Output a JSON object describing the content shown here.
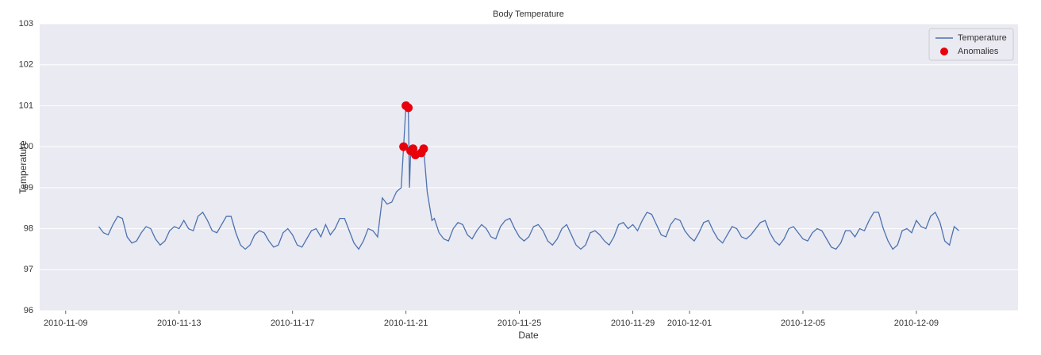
{
  "chart_data": {
    "type": "line",
    "title": "Body Temperature",
    "x_label": "Date",
    "y_label": "Temperature",
    "xlim": [
      "2010-11-08T02:00",
      "2010-12-12T14:00"
    ],
    "xticks": [
      "2010-11-09",
      "2010-11-13",
      "2010-11-17",
      "2010-11-21",
      "2010-11-25",
      "2010-11-29",
      "2010-12-01",
      "2010-12-05",
      "2010-12-09"
    ],
    "ylim": [
      96,
      103
    ],
    "yticks": [
      96,
      97,
      98,
      99,
      100,
      101,
      102,
      103
    ],
    "grid": true,
    "legend": "upper right",
    "series": [
      {
        "name": "Temperature",
        "type": "line",
        "color": "#4c72b0",
        "x": [
          "2010-11-10T04:00",
          "2010-11-10T08:00",
          "2010-11-10T12:00",
          "2010-11-10T16:00",
          "2010-11-10T20:00",
          "2010-11-11T00:00",
          "2010-11-11T04:00",
          "2010-11-11T08:00",
          "2010-11-11T12:00",
          "2010-11-11T16:00",
          "2010-11-11T20:00",
          "2010-11-12T00:00",
          "2010-11-12T04:00",
          "2010-11-12T08:00",
          "2010-11-12T12:00",
          "2010-11-12T16:00",
          "2010-11-12T20:00",
          "2010-11-13T00:00",
          "2010-11-13T04:00",
          "2010-11-13T08:00",
          "2010-11-13T12:00",
          "2010-11-13T16:00",
          "2010-11-13T20:00",
          "2010-11-14T00:00",
          "2010-11-14T04:00",
          "2010-11-14T08:00",
          "2010-11-14T12:00",
          "2010-11-14T16:00",
          "2010-11-14T20:00",
          "2010-11-15T00:00",
          "2010-11-15T04:00",
          "2010-11-15T08:00",
          "2010-11-15T12:00",
          "2010-11-15T16:00",
          "2010-11-15T20:00",
          "2010-11-16T00:00",
          "2010-11-16T04:00",
          "2010-11-16T08:00",
          "2010-11-16T12:00",
          "2010-11-16T16:00",
          "2010-11-16T20:00",
          "2010-11-17T00:00",
          "2010-11-17T04:00",
          "2010-11-17T08:00",
          "2010-11-17T12:00",
          "2010-11-17T16:00",
          "2010-11-17T20:00",
          "2010-11-18T00:00",
          "2010-11-18T04:00",
          "2010-11-18T08:00",
          "2010-11-18T12:00",
          "2010-11-18T16:00",
          "2010-11-18T20:00",
          "2010-11-19T00:00",
          "2010-11-19T04:00",
          "2010-11-19T08:00",
          "2010-11-19T12:00",
          "2010-11-19T16:00",
          "2010-11-19T20:00",
          "2010-11-20T00:00",
          "2010-11-20T04:00",
          "2010-11-20T08:00",
          "2010-11-20T12:00",
          "2010-11-20T16:00",
          "2010-11-20T20:00",
          "2010-11-20T22:00",
          "2010-11-21T00:00",
          "2010-11-21T02:00",
          "2010-11-21T03:00",
          "2010-11-21T04:00",
          "2010-11-21T06:00",
          "2010-11-21T08:00",
          "2010-11-21T12:00",
          "2010-11-21T13:00",
          "2010-11-21T15:00",
          "2010-11-21T18:00",
          "2010-11-21T22:00",
          "2010-11-22T00:00",
          "2010-11-22T04:00",
          "2010-11-22T08:00",
          "2010-11-22T12:00",
          "2010-11-22T16:00",
          "2010-11-22T20:00",
          "2010-11-23T00:00",
          "2010-11-23T04:00",
          "2010-11-23T08:00",
          "2010-11-23T12:00",
          "2010-11-23T16:00",
          "2010-11-23T20:00",
          "2010-11-24T00:00",
          "2010-11-24T04:00",
          "2010-11-24T08:00",
          "2010-11-24T12:00",
          "2010-11-24T16:00",
          "2010-11-24T20:00",
          "2010-11-25T00:00",
          "2010-11-25T04:00",
          "2010-11-25T08:00",
          "2010-11-25T12:00",
          "2010-11-25T16:00",
          "2010-11-25T20:00",
          "2010-11-26T00:00",
          "2010-11-26T04:00",
          "2010-11-26T08:00",
          "2010-11-26T12:00",
          "2010-11-26T16:00",
          "2010-11-26T20:00",
          "2010-11-27T00:00",
          "2010-11-27T04:00",
          "2010-11-27T08:00",
          "2010-11-27T12:00",
          "2010-11-27T16:00",
          "2010-11-27T20:00",
          "2010-11-28T00:00",
          "2010-11-28T04:00",
          "2010-11-28T08:00",
          "2010-11-28T12:00",
          "2010-11-28T16:00",
          "2010-11-28T20:00",
          "2010-11-29T00:00",
          "2010-11-29T04:00",
          "2010-11-29T08:00",
          "2010-11-29T12:00",
          "2010-11-29T16:00",
          "2010-11-29T20:00",
          "2010-11-30T00:00",
          "2010-11-30T04:00",
          "2010-11-30T08:00",
          "2010-11-30T12:00",
          "2010-11-30T16:00",
          "2010-11-30T20:00",
          "2010-12-01T00:00",
          "2010-12-01T04:00",
          "2010-12-01T08:00",
          "2010-12-01T12:00",
          "2010-12-01T16:00",
          "2010-12-01T20:00",
          "2010-12-02T00:00",
          "2010-12-02T04:00",
          "2010-12-02T08:00",
          "2010-12-02T12:00",
          "2010-12-02T16:00",
          "2010-12-02T20:00",
          "2010-12-03T00:00",
          "2010-12-03T04:00",
          "2010-12-03T08:00",
          "2010-12-03T12:00",
          "2010-12-03T16:00",
          "2010-12-03T20:00",
          "2010-12-04T00:00",
          "2010-12-04T04:00",
          "2010-12-04T08:00",
          "2010-12-04T12:00",
          "2010-12-04T16:00",
          "2010-12-04T20:00",
          "2010-12-05T00:00",
          "2010-12-05T04:00",
          "2010-12-05T08:00",
          "2010-12-05T12:00",
          "2010-12-05T16:00",
          "2010-12-05T20:00",
          "2010-12-06T00:00",
          "2010-12-06T04:00",
          "2010-12-06T08:00",
          "2010-12-06T12:00",
          "2010-12-06T16:00",
          "2010-12-06T20:00",
          "2010-12-07T00:00",
          "2010-12-07T04:00",
          "2010-12-07T08:00",
          "2010-12-07T12:00",
          "2010-12-07T16:00",
          "2010-12-07T20:00",
          "2010-12-08T00:00",
          "2010-12-08T04:00",
          "2010-12-08T08:00",
          "2010-12-08T12:00",
          "2010-12-08T16:00",
          "2010-12-08T20:00",
          "2010-12-09T00:00",
          "2010-12-09T04:00",
          "2010-12-09T08:00",
          "2010-12-09T12:00",
          "2010-12-09T16:00",
          "2010-12-09T20:00",
          "2010-12-10T00:00",
          "2010-12-10T04:00",
          "2010-12-10T08:00",
          "2010-12-10T12:00"
        ],
        "values": [
          98.05,
          97.9,
          97.85,
          98.1,
          98.3,
          98.25,
          97.8,
          97.65,
          97.7,
          97.9,
          98.05,
          98.0,
          97.75,
          97.6,
          97.7,
          97.95,
          98.05,
          98.0,
          98.2,
          98.0,
          97.95,
          98.3,
          98.4,
          98.2,
          97.95,
          97.9,
          98.1,
          98.3,
          98.3,
          97.9,
          97.6,
          97.5,
          97.6,
          97.85,
          97.95,
          97.9,
          97.7,
          97.55,
          97.6,
          97.9,
          98.0,
          97.85,
          97.6,
          97.55,
          97.75,
          97.95,
          98.0,
          97.8,
          98.1,
          97.85,
          98.0,
          98.25,
          98.25,
          97.95,
          97.65,
          97.5,
          97.7,
          98.0,
          97.95,
          97.8,
          98.75,
          98.6,
          98.65,
          98.9,
          99.0,
          100.0,
          101.0,
          100.95,
          99.0,
          99.9,
          99.95,
          99.8,
          99.8,
          99.85,
          99.95,
          98.9,
          98.2,
          98.25,
          97.9,
          97.75,
          97.7,
          98.0,
          98.15,
          98.1,
          97.85,
          97.75,
          97.95,
          98.1,
          98.0,
          97.8,
          97.75,
          98.05,
          98.2,
          98.25,
          98.0,
          97.8,
          97.7,
          97.8,
          98.05,
          98.1,
          97.95,
          97.7,
          97.6,
          97.75,
          98.0,
          98.1,
          97.85,
          97.6,
          97.5,
          97.6,
          97.9,
          97.95,
          97.85,
          97.7,
          97.6,
          97.8,
          98.1,
          98.15,
          98.0,
          98.1,
          97.95,
          98.2,
          98.4,
          98.35,
          98.1,
          97.85,
          97.8,
          98.1,
          98.25,
          98.2,
          97.95,
          97.8,
          97.7,
          97.9,
          98.15,
          98.2,
          97.95,
          97.75,
          97.65,
          97.85,
          98.05,
          98.0,
          97.8,
          97.75,
          97.85,
          98.0,
          98.15,
          98.2,
          97.9,
          97.7,
          97.6,
          97.75,
          98.0,
          98.05,
          97.9,
          97.75,
          97.7,
          97.9,
          98.0,
          97.95,
          97.75,
          97.55,
          97.5,
          97.65,
          97.95,
          97.95,
          97.8,
          98.0,
          97.95,
          98.2,
          98.4,
          98.4,
          98.0,
          97.7,
          97.5,
          97.6,
          97.95,
          98.0,
          97.9,
          98.2,
          98.05,
          98.0,
          98.3,
          98.4,
          98.15,
          97.7,
          97.6,
          98.05,
          97.95
        ]
      },
      {
        "name": "Anomalies",
        "type": "scatter",
        "color": "#e8000b",
        "x": [
          "2010-11-20T22:00",
          "2010-11-21T00:00",
          "2010-11-21T02:00",
          "2010-11-21T04:00",
          "2010-11-21T06:00",
          "2010-11-21T08:00",
          "2010-11-21T13:00",
          "2010-11-21T15:00"
        ],
        "values": [
          100.0,
          101.0,
          100.95,
          99.9,
          99.95,
          99.8,
          99.85,
          99.95
        ]
      }
    ]
  }
}
